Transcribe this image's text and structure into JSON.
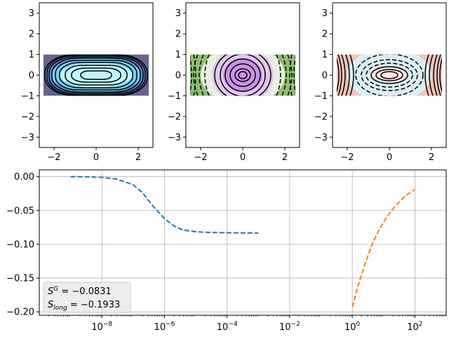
{
  "chart_data": [
    {
      "type": "contour",
      "panel": "top-left",
      "xlim": [
        -2.7,
        2.7
      ],
      "ylim": [
        -3.5,
        3.5
      ],
      "xticks": [
        "−2",
        "0",
        "2"
      ],
      "yticks": [
        "3",
        "2",
        "1",
        "0",
        "−1",
        "−2",
        "−3"
      ],
      "domain": {
        "x": [
          -2.5,
          2.5
        ],
        "y": [
          -1,
          1
        ]
      },
      "fill_colors": [
        "#63658e",
        "#5c8ed0",
        "#73d2f2",
        "#bff8fc"
      ],
      "line_style": "solid"
    },
    {
      "type": "contour",
      "panel": "top-middle",
      "xlim": [
        -2.7,
        2.7
      ],
      "ylim": [
        -3.5,
        3.5
      ],
      "xticks": [
        "−2",
        "0",
        "2"
      ],
      "yticks": [
        "3",
        "2",
        "1",
        "0",
        "−1",
        "−2",
        "−3"
      ],
      "domain": {
        "x": [
          -2.5,
          2.5
        ],
        "y": [
          -1,
          1
        ]
      },
      "fill_colors": [
        "#8cbf6f",
        "#e8efe0",
        "#e2c8ec",
        "#cc91e5"
      ],
      "line_style": "mixed"
    },
    {
      "type": "contour",
      "panel": "top-right",
      "xlim": [
        -2.7,
        2.7
      ],
      "ylim": [
        -3.5,
        3.5
      ],
      "xticks": [
        "−2",
        "0",
        "2"
      ],
      "yticks": [
        "3",
        "2",
        "1",
        "0",
        "−1",
        "−2",
        "−3"
      ],
      "domain": {
        "x": [
          -2.5,
          2.5
        ],
        "y": [
          -1,
          1
        ]
      },
      "fill_colors": [
        "#f0c3b5",
        "#daeff5",
        "#fde6e0"
      ],
      "line_style": "mixed"
    },
    {
      "type": "line",
      "panel": "bottom",
      "xscale": "log",
      "xlim": [
        1e-10,
        1000.0
      ],
      "ylim": [
        -0.205,
        0.01
      ],
      "grid": true,
      "xticks": [
        {
          "base": "10",
          "exp": "−8",
          "value": 1e-08
        },
        {
          "base": "10",
          "exp": "−6",
          "value": 1e-06
        },
        {
          "base": "10",
          "exp": "−4",
          "value": 0.0001
        },
        {
          "base": "10",
          "exp": "−2",
          "value": 0.01
        },
        {
          "base": "10",
          "exp": "0",
          "value": 1
        },
        {
          "base": "10",
          "exp": "2",
          "value": 100
        }
      ],
      "yticks": [
        {
          "label": "0.00",
          "value": 0
        },
        {
          "label": "−0.05",
          "value": -0.05
        },
        {
          "label": "−0.10",
          "value": -0.1
        },
        {
          "label": "−0.15",
          "value": -0.15
        },
        {
          "label": "−0.20",
          "value": -0.2
        }
      ],
      "series": [
        {
          "color": "#1f77b4",
          "dash": "dashed",
          "x": [
            1e-09,
            3e-09,
            1e-08,
            3e-08,
            1e-07,
            2e-07,
            4e-07,
            1e-06,
            2e-06,
            4e-06,
            1e-05,
            3e-05,
            0.0001,
            0.001
          ],
          "y": [
            0.0,
            -0.0002,
            -0.001,
            -0.0035,
            -0.012,
            -0.024,
            -0.042,
            -0.062,
            -0.073,
            -0.079,
            -0.0815,
            -0.0825,
            -0.083,
            -0.0835
          ]
        },
        {
          "color": "#ff7f0e",
          "dash": "dashed",
          "x": [
            1.0,
            1.5,
            2.2,
            3.2,
            4.6,
            6.8,
            10,
            15,
            22,
            32,
            46,
            68,
            100
          ],
          "y": [
            -0.193,
            -0.163,
            -0.138,
            -0.116,
            -0.097,
            -0.081,
            -0.067,
            -0.055,
            -0.045,
            -0.037,
            -0.03,
            -0.024,
            -0.019
          ]
        }
      ],
      "legend": {
        "placement": "lower-left",
        "lines": [
          {
            "sym": "S",
            "sup": "G",
            "sub": "",
            "text": " = −0.0831"
          },
          {
            "sym": "S",
            "sup": "",
            "sub": "long",
            "text": " = −0.1933"
          }
        ]
      }
    }
  ]
}
